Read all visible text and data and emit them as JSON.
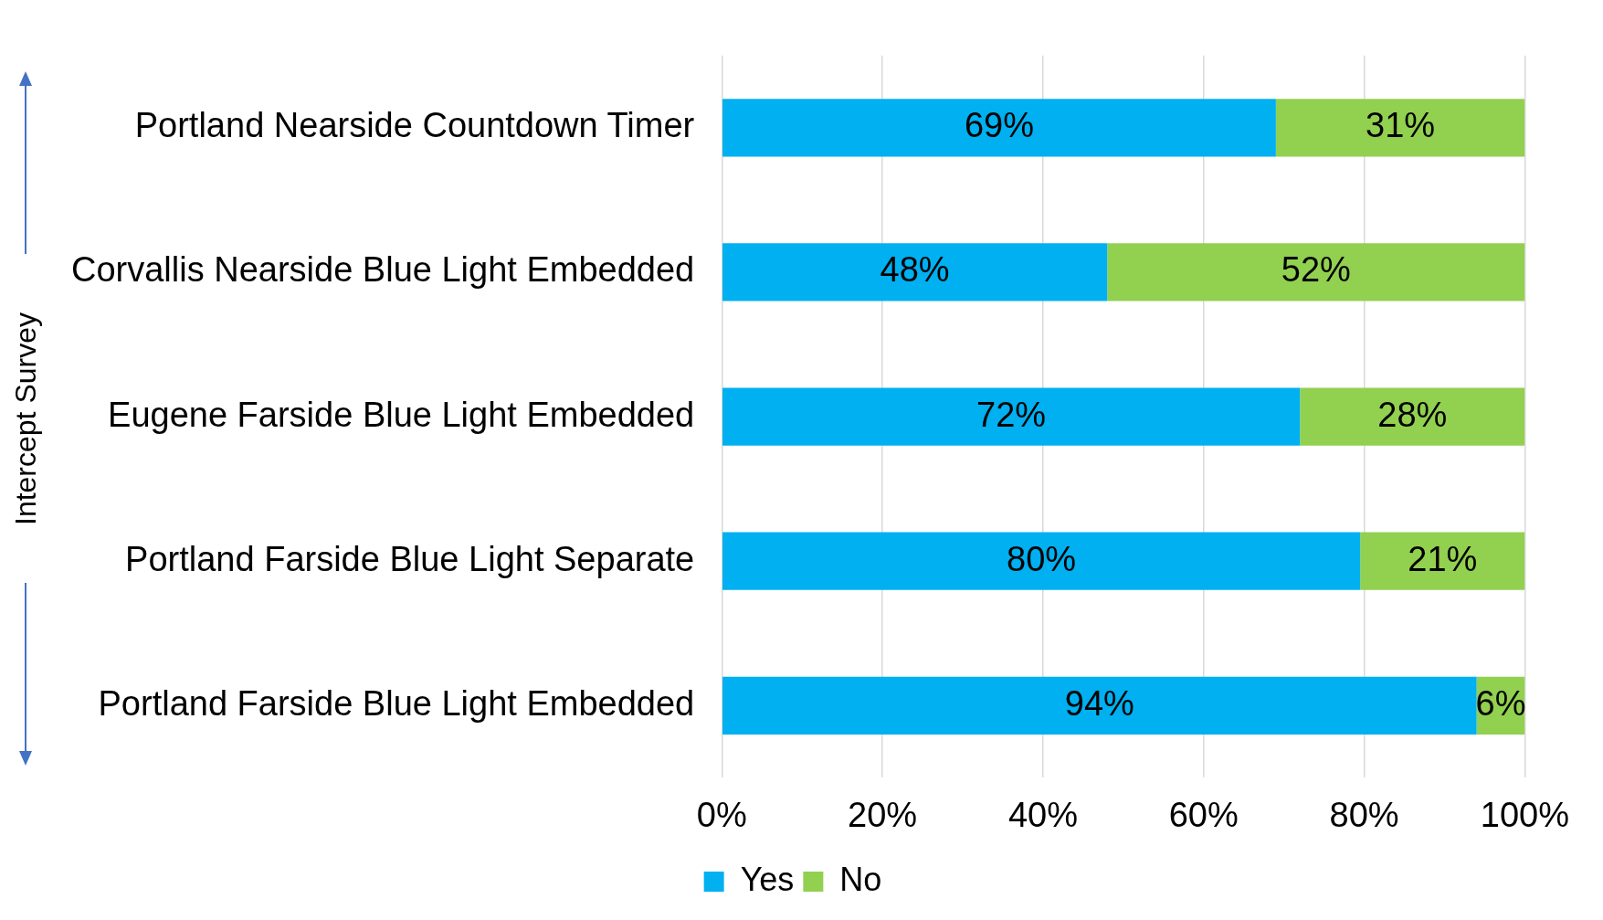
{
  "chart_data": {
    "type": "bar",
    "orientation": "horizontal",
    "stacked": true,
    "ylabel": "Intercept Survey",
    "categories": [
      "Portland Nearside Countdown Timer",
      "Corvallis Nearside Blue Light Embedded",
      "Eugene Farside Blue Light Embedded",
      "Portland Farside Blue Light Separate",
      "Portland Farside Blue Light Embedded"
    ],
    "series": [
      {
        "name": "Yes",
        "color": "#00b0f0",
        "values": [
          69,
          48,
          72,
          79.5,
          94
        ],
        "value_labels": [
          "69%",
          "48%",
          "72%",
          "80%",
          "94%"
        ]
      },
      {
        "name": "No",
        "color": "#92d050",
        "values": [
          31,
          52,
          28,
          20.5,
          6
        ],
        "value_labels": [
          "31%",
          "52%",
          "28%",
          "21%",
          "6%"
        ]
      }
    ],
    "xlim": [
      0,
      100
    ],
    "xticks": [
      {
        "value": 0,
        "label": "0%"
      },
      {
        "value": 20,
        "label": "20%"
      },
      {
        "value": 40,
        "label": "40%"
      },
      {
        "value": 60,
        "label": "60%"
      },
      {
        "value": 80,
        "label": "80%"
      },
      {
        "value": 100,
        "label": "100%"
      }
    ],
    "grid": "x",
    "legend": "bottom"
  }
}
